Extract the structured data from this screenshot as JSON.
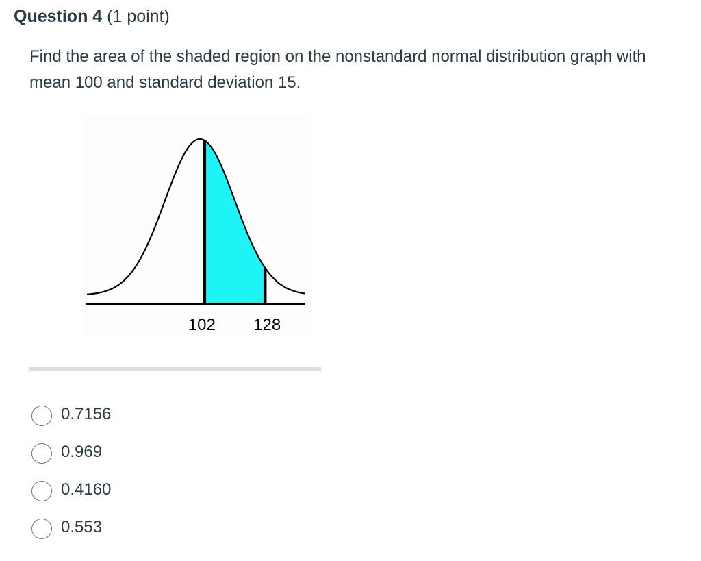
{
  "question": {
    "title": "Question 4",
    "points": "(1 point)",
    "text": "Find the area of the shaded region on the nonstandard normal distribution graph with mean 100 and standard deviation 15."
  },
  "figure": {
    "mean": 100,
    "sd": 15,
    "shade_from": 102,
    "shade_to": 128,
    "label_left": "102",
    "label_right": "128",
    "shade_color": "#1ef3f6",
    "curve_color": "#000000"
  },
  "answers": [
    {
      "label": "0.7156"
    },
    {
      "label": "0.969"
    },
    {
      "label": "0.4160"
    },
    {
      "label": "0.553"
    }
  ]
}
